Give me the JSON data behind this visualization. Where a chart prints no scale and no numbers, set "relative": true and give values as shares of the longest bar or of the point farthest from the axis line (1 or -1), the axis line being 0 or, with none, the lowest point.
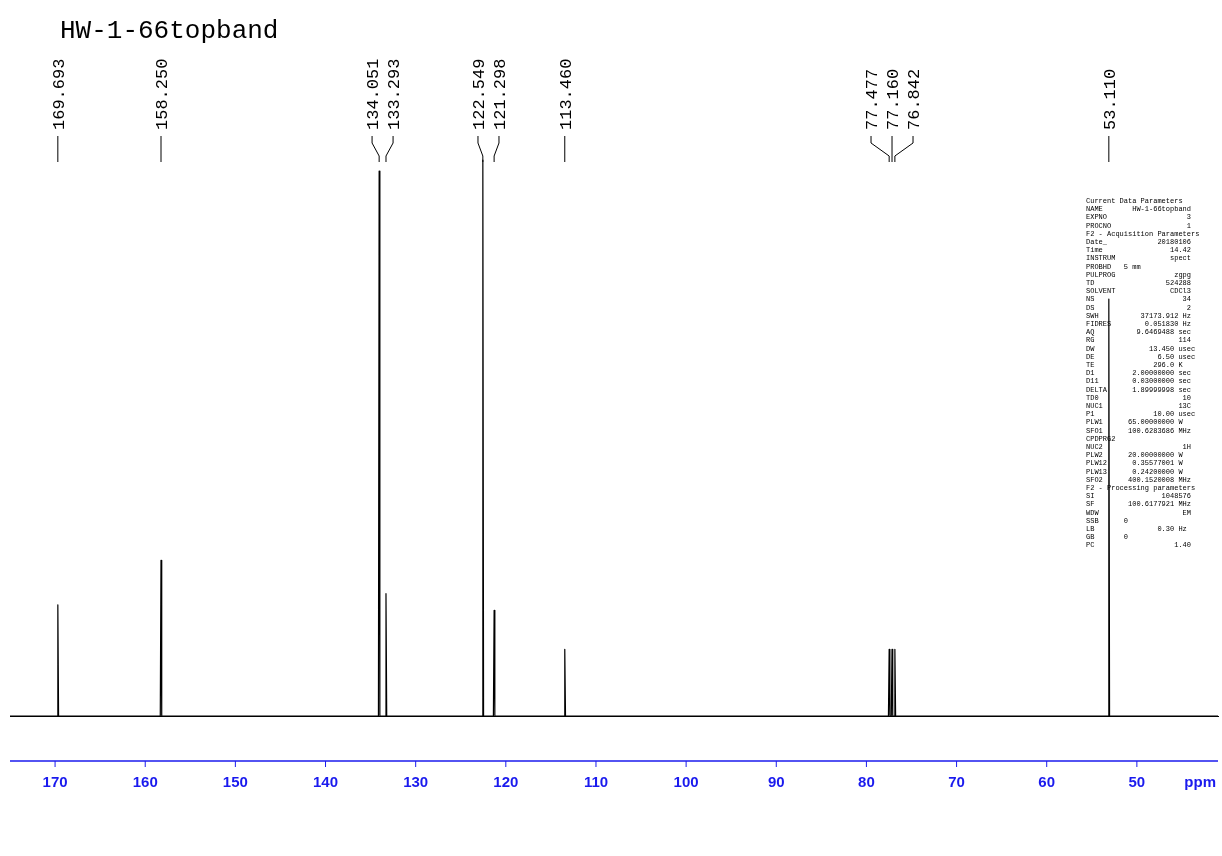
{
  "chart_data": {
    "type": "line",
    "title": "HW-1-66topband",
    "xlabel": "ppm",
    "relative": true,
    "xlim": [
      175,
      41
    ],
    "xticks": [
      170,
      160,
      150,
      140,
      130,
      120,
      110,
      100,
      90,
      80,
      70,
      60,
      50
    ],
    "grid": false,
    "legend": false,
    "marker": "none",
    "line_style": "solid",
    "series": [
      {
        "color": "#000000",
        "x": [
          175,
          169.773,
          169.693,
          169.613,
          158.33,
          158.25,
          158.17,
          134.131,
          134.051,
          133.971,
          133.373,
          133.293,
          133.213,
          122.629,
          122.549,
          122.469,
          121.378,
          121.298,
          121.218,
          113.54,
          113.46,
          113.38,
          77.557,
          77.477,
          77.397,
          77.24,
          77.16,
          77.08,
          76.922,
          76.842,
          76.762,
          53.19,
          53.11,
          53.03,
          41
        ],
        "values": [
          0,
          0,
          0.2,
          0,
          0,
          0.28,
          0,
          0,
          0.98,
          0,
          0,
          0.22,
          0,
          0,
          1,
          0,
          0,
          0.19,
          0,
          0,
          0.12,
          0,
          0,
          0.12,
          0,
          0,
          0.12,
          0,
          0,
          0.12,
          0,
          0,
          0.75,
          0,
          0
        ]
      }
    ],
    "annotations": [
      {
        "text": "169.693",
        "x": 169.693
      },
      {
        "text": "158.250",
        "x": 158.25
      },
      {
        "text": "134.051",
        "x": 134.051
      },
      {
        "text": "133.293",
        "x": 133.293
      },
      {
        "text": "122.549",
        "x": 122.549
      },
      {
        "text": "121.298",
        "x": 121.298
      },
      {
        "text": "113.460",
        "x": 113.46
      },
      {
        "text": "77.477",
        "x": 77.477
      },
      {
        "text": "77.160",
        "x": 77.16
      },
      {
        "text": "76.842",
        "x": 76.842
      },
      {
        "text": "53.110",
        "x": 53.11
      },
      "Current Data Parameters",
      "NAME       HW-1-66topband",
      "EXPNO                   3",
      "PROCNO                  1",
      "F2 - Acquisition Parameters",
      "Date_            20180106",
      "Time                14.42",
      "INSTRUM             spect",
      "PROBHD   5 mm",
      "PULPROG              zgpg",
      "TD                 524288",
      "SOLVENT             CDCl3",
      "NS                     34",
      "DS                      2",
      "SWH          37173.912 Hz",
      "FIDRES        0.051830 Hz",
      "AQ          9.6469488 sec",
      "RG                    114",
      "DW             13.450 usec",
      "DE               6.50 usec",
      "TE              296.0 K",
      "D1         2.00000000 sec",
      "D11        0.03000000 sec",
      "DELTA      1.89999998 sec",
      "TD0                    10",
      "NUC1                  13C",
      "P1              10.00 usec",
      "PLW1      65.00000000 W",
      "SFO1      100.6283686 MHz",
      "CPDPRG2",
      "NUC2                   1H",
      "PLW2      20.00000000 W",
      "PLW12      0.35577001 W",
      "PLW13      0.24200000 W",
      "SFO2      400.1520008 MHz",
      "F2 - Processing parameters",
      "SI                1048576",
      "SF        100.6177921 MHz",
      "WDW                    EM",
      "SSB      0",
      "LB               0.30 Hz",
      "GB       0",
      "PC                   1.40"
    ]
  }
}
